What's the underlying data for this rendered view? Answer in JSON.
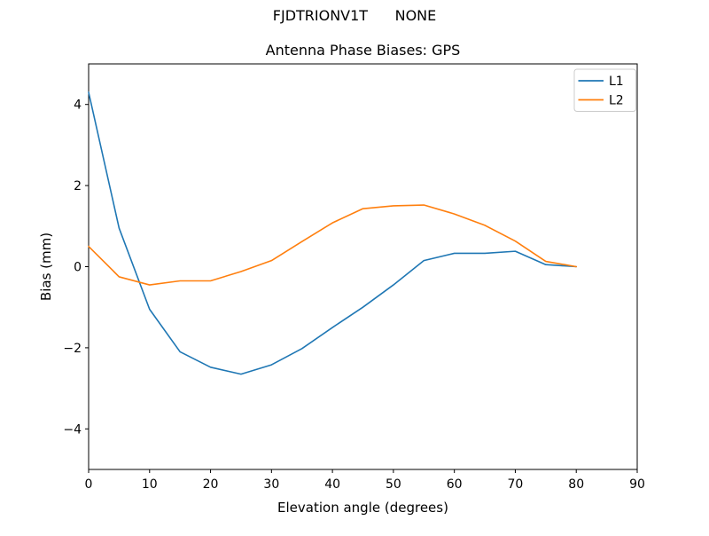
{
  "figure": {
    "suptitle": "FJDTRIONV1T      NONE",
    "title": "Antenna Phase Biases: GPS",
    "xlabel": "Elevation angle (degrees)",
    "ylabel": "Bias (mm)",
    "background_color": "#ffffff",
    "axes_color": "#000000"
  },
  "legend": {
    "position": "upper right",
    "frame_color": "#cccccc",
    "entries": [
      {
        "label": "L1",
        "color": "#1f77b4"
      },
      {
        "label": "L2",
        "color": "#ff7f0e"
      }
    ]
  },
  "chart_data": {
    "type": "line",
    "suptitle": "FJDTRIONV1T      NONE",
    "title": "Antenna Phase Biases: GPS",
    "xlabel": "Elevation angle (degrees)",
    "ylabel": "Bias (mm)",
    "xlim": [
      0,
      90
    ],
    "ylim": [
      -5,
      5
    ],
    "x_ticks": [
      0,
      10,
      20,
      30,
      40,
      50,
      60,
      70,
      80,
      90
    ],
    "y_ticks": [
      -4,
      -2,
      0,
      2,
      4
    ],
    "grid": false,
    "legend_position": "upper right",
    "x": [
      0,
      5,
      10,
      15,
      20,
      25,
      30,
      35,
      40,
      45,
      50,
      55,
      60,
      65,
      70,
      75,
      80
    ],
    "series": [
      {
        "name": "L1",
        "color": "#1f77b4",
        "values": [
          4.3,
          0.95,
          -1.05,
          -2.1,
          -2.48,
          -2.65,
          -2.42,
          -2.02,
          -1.5,
          -1.0,
          -0.45,
          0.15,
          0.33,
          0.33,
          0.38,
          0.05,
          0.0
        ]
      },
      {
        "name": "L2",
        "color": "#ff7f0e",
        "values": [
          0.5,
          -0.25,
          -0.45,
          -0.35,
          -0.35,
          -0.12,
          0.15,
          0.62,
          1.08,
          1.43,
          1.5,
          1.52,
          1.3,
          1.02,
          0.63,
          0.13,
          0.0
        ]
      }
    ]
  }
}
